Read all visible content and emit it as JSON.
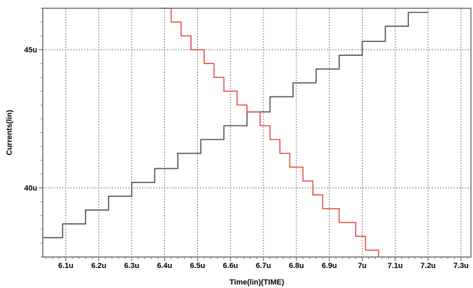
{
  "chart_data": {
    "type": "line",
    "title": "",
    "xlabel": "Time(lin)(TIME)",
    "ylabel": "Currents(lin)",
    "xlim": [
      6.03,
      7.33
    ],
    "ylim": [
      37.5,
      46.5
    ],
    "x_ticks": [
      {
        "value": 6.1,
        "label": "6.1u"
      },
      {
        "value": 6.2,
        "label": "6.2u"
      },
      {
        "value": 6.3,
        "label": "6.3u"
      },
      {
        "value": 6.4,
        "label": "6.4u"
      },
      {
        "value": 6.5,
        "label": "6.5u"
      },
      {
        "value": 6.6,
        "label": "6.6u"
      },
      {
        "value": 6.7,
        "label": "6.7u"
      },
      {
        "value": 6.8,
        "label": "6.8u"
      },
      {
        "value": 6.9,
        "label": "6.9u"
      },
      {
        "value": 7.0,
        "label": "7u"
      },
      {
        "value": 7.1,
        "label": "7.1u"
      },
      {
        "value": 7.2,
        "label": "7.2u"
      },
      {
        "value": 7.3,
        "label": "7.3u"
      }
    ],
    "y_ticks": [
      {
        "value": 40,
        "label": "40u"
      },
      {
        "value": 45,
        "label": "45u"
      }
    ],
    "grid": true,
    "series": [
      {
        "color": "#505050",
        "step": true,
        "points": [
          [
            6.03,
            38.2
          ],
          [
            6.09,
            38.2
          ],
          [
            6.09,
            38.7
          ],
          [
            6.16,
            38.7
          ],
          [
            6.16,
            39.2
          ],
          [
            6.23,
            39.2
          ],
          [
            6.23,
            39.7
          ],
          [
            6.3,
            39.7
          ],
          [
            6.3,
            40.2
          ],
          [
            6.37,
            40.2
          ],
          [
            6.37,
            40.7
          ],
          [
            6.44,
            40.7
          ],
          [
            6.44,
            41.25
          ],
          [
            6.51,
            41.25
          ],
          [
            6.51,
            41.75
          ],
          [
            6.58,
            41.75
          ],
          [
            6.58,
            42.25
          ],
          [
            6.65,
            42.25
          ],
          [
            6.65,
            42.75
          ],
          [
            6.72,
            42.75
          ],
          [
            6.72,
            43.3
          ],
          [
            6.79,
            43.3
          ],
          [
            6.79,
            43.8
          ],
          [
            6.86,
            43.8
          ],
          [
            6.86,
            44.3
          ],
          [
            6.93,
            44.3
          ],
          [
            6.93,
            44.8
          ],
          [
            7.0,
            44.8
          ],
          [
            7.0,
            45.3
          ],
          [
            7.07,
            45.3
          ],
          [
            7.07,
            45.85
          ],
          [
            7.14,
            45.85
          ],
          [
            7.14,
            46.35
          ],
          [
            7.2,
            46.35
          ]
        ]
      },
      {
        "color": "#e8504a",
        "step": true,
        "points": [
          [
            6.39,
            46.5
          ],
          [
            6.42,
            46.5
          ],
          [
            6.42,
            46.0
          ],
          [
            6.45,
            46.0
          ],
          [
            6.45,
            45.5
          ],
          [
            6.48,
            45.5
          ],
          [
            6.48,
            45.0
          ],
          [
            6.52,
            45.0
          ],
          [
            6.52,
            44.5
          ],
          [
            6.55,
            44.5
          ],
          [
            6.55,
            44.0
          ],
          [
            6.58,
            44.0
          ],
          [
            6.58,
            43.5
          ],
          [
            6.62,
            43.5
          ],
          [
            6.62,
            43.0
          ],
          [
            6.65,
            43.0
          ],
          [
            6.65,
            42.75
          ],
          [
            6.69,
            42.75
          ],
          [
            6.69,
            42.25
          ],
          [
            6.72,
            42.25
          ],
          [
            6.72,
            41.75
          ],
          [
            6.75,
            41.75
          ],
          [
            6.75,
            41.25
          ],
          [
            6.78,
            41.25
          ],
          [
            6.78,
            40.75
          ],
          [
            6.82,
            40.75
          ],
          [
            6.82,
            40.25
          ],
          [
            6.85,
            40.25
          ],
          [
            6.85,
            39.75
          ],
          [
            6.88,
            39.75
          ],
          [
            6.88,
            39.25
          ],
          [
            6.93,
            39.25
          ],
          [
            6.93,
            38.75
          ],
          [
            6.98,
            38.75
          ],
          [
            6.98,
            38.25
          ],
          [
            7.01,
            38.25
          ],
          [
            7.01,
            37.75
          ],
          [
            7.05,
            37.75
          ],
          [
            7.05,
            37.5
          ]
        ]
      }
    ]
  }
}
